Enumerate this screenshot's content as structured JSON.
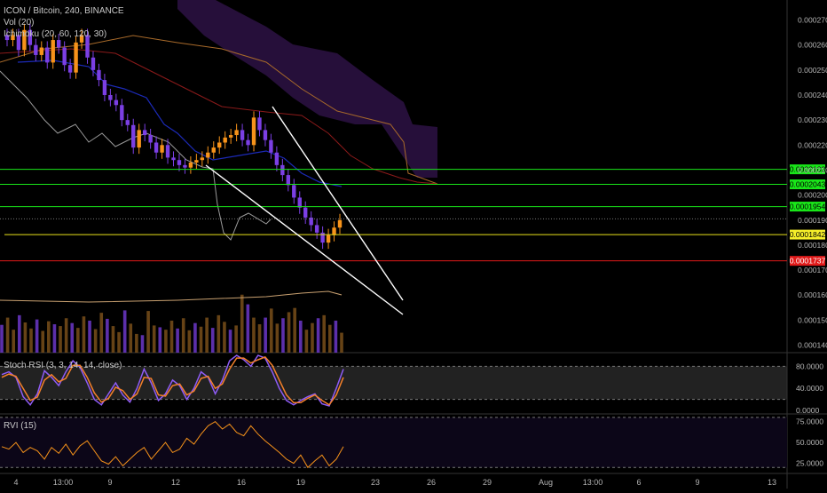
{
  "header": {
    "symbol_line": "ICON / Bitcoin, 240, BINANCE",
    "vol_label": "Vol (20)",
    "ichimoku_label": "Ichimoku (20, 60, 120, 30)",
    "stoch_label": "Stoch RSI (3, 3, 14, 14, close)",
    "rvi_label": "RVI (15)"
  },
  "colors": {
    "background": "#000000",
    "candle_up": "#f7931a",
    "candle_down": "#7b3fe4",
    "stoch_k": "#8f5cf6",
    "stoch_d": "#f4802a",
    "rvi": "#f7931a",
    "cloud": "#2d1244",
    "level_green": "#19e619",
    "level_yellow": "#e8e21a",
    "level_red": "#e21a1a",
    "wedge": "#ffffff"
  },
  "price_axis": {
    "ticks": [
      "0.0002700",
      "0.0002600",
      "0.0002500",
      "0.0002400",
      "0.0002300",
      "0.0002200",
      "0.0002100",
      "0.0002000",
      "0.0001900",
      "0.0001800",
      "0.0001700",
      "0.0001600",
      "0.0001500",
      "0.0001400"
    ]
  },
  "time_axis": {
    "ticks": [
      "4",
      "13:00",
      "9",
      "12",
      "16",
      "19",
      "23",
      "26",
      "29",
      "Aug",
      "13:00",
      "6",
      "9",
      "13"
    ]
  },
  "levels": [
    {
      "label": "0.0002103",
      "value": 0.0002103,
      "color": "#19e619",
      "label_bg": "#19e619",
      "label_fg": "#000000"
    },
    {
      "label": "0.0002043",
      "value": 0.0002043,
      "color": "#19e619",
      "label_bg": "#19e619",
      "label_fg": "#000000"
    },
    {
      "label": "0.0001954",
      "value": 0.0001954,
      "color": "#19e619",
      "label_bg": "#19e619",
      "label_fg": "#000000"
    },
    {
      "label": "0.0001842",
      "value": 0.0001842,
      "color": "#e8e21a",
      "label_bg": "#f5ee2a",
      "label_fg": "#000000"
    },
    {
      "label": "0.0001737",
      "value": 0.0001737,
      "color": "#e21a1a",
      "label_bg": "#e21a1a",
      "label_fg": "#ffffff"
    }
  ],
  "stoch_axis": {
    "ticks": [
      "80.0000",
      "40.0000",
      "0.0000"
    ]
  },
  "rvi_axis": {
    "ticks": [
      "75.0000",
      "50.0000",
      "25.0000"
    ]
  },
  "chart_data": [
    {
      "type": "candlestick",
      "title": "ICON / Bitcoin, 240, BINANCE",
      "ylim": [
        0.000137,
        0.000278
      ],
      "close": [
        0.000262,
        0.000264,
        0.000258,
        0.000266,
        0.00026,
        0.000256,
        0.000259,
        0.000253,
        0.000262,
        0.000259,
        0.000252,
        0.000249,
        0.000261,
        0.000264,
        0.000255,
        0.00025,
        0.000246,
        0.00024,
        0.000238,
        0.000236,
        0.00023,
        0.000228,
        0.000219,
        0.000226,
        0.000224,
        0.000221,
        0.000217,
        0.00022,
        0.000215,
        0.000214,
        0.000212,
        0.000211,
        0.000213,
        0.000214,
        0.000215,
        0.000217,
        0.000219,
        0.000221,
        0.000223,
        0.000224,
        0.000226,
        0.000222,
        0.00022,
        0.000231,
        0.000226,
        0.000222,
        0.000217,
        0.000212,
        0.000208,
        0.000204,
        0.000199,
        0.000195,
        0.000191,
        0.000188,
        0.000185,
        0.000181,
        0.000184,
        0.000187,
        0.00019
      ]
    },
    {
      "type": "line",
      "title": "Stoch RSI (3, 3, 14, 14, close)",
      "ylim": [
        0,
        100
      ],
      "series": [
        {
          "name": "K",
          "values": [
            65,
            70,
            60,
            25,
            10,
            30,
            72,
            60,
            45,
            70,
            90,
            78,
            50,
            20,
            10,
            30,
            50,
            28,
            15,
            40,
            75,
            50,
            18,
            30,
            55,
            45,
            20,
            40,
            70,
            60,
            30,
            55,
            90,
            100,
            92,
            80,
            100,
            95,
            70,
            40,
            18,
            10,
            18,
            25,
            30,
            12,
            8,
            40,
            75
          ]
        },
        {
          "name": "D",
          "values": [
            60,
            66,
            62,
            40,
            18,
            24,
            55,
            65,
            52,
            58,
            82,
            82,
            60,
            32,
            15,
            22,
            42,
            36,
            20,
            30,
            60,
            58,
            28,
            26,
            45,
            48,
            28,
            35,
            58,
            62,
            40,
            48,
            75,
            95,
            95,
            86,
            92,
            97,
            82,
            55,
            28,
            14,
            14,
            22,
            28,
            18,
            10,
            28,
            60
          ]
        }
      ]
    },
    {
      "type": "line",
      "title": "RVI (15)",
      "ylim": [
        15,
        82
      ],
      "series": [
        {
          "name": "RVI",
          "values": [
            45,
            42,
            50,
            38,
            44,
            40,
            30,
            44,
            37,
            48,
            35,
            46,
            52,
            40,
            28,
            24,
            33,
            22,
            30,
            38,
            44,
            30,
            40,
            50,
            38,
            42,
            55,
            48,
            60,
            70,
            75,
            66,
            72,
            62,
            58,
            70,
            60,
            52,
            45,
            38,
            30,
            25,
            35,
            20,
            28,
            35,
            22,
            30,
            45
          ]
        }
      ]
    },
    {
      "type": "bar",
      "title": "Vol (20)",
      "values": [
        46,
        58,
        38,
        62,
        50,
        40,
        55,
        36,
        52,
        47,
        44,
        57,
        49,
        41,
        60,
        53,
        39,
        66,
        56,
        44,
        34,
        70,
        48,
        31,
        29,
        69,
        45,
        42,
        38,
        53,
        40,
        57,
        37,
        49,
        43,
        58,
        41,
        62,
        51,
        38,
        45,
        96,
        80,
        58,
        47,
        58,
        73,
        48,
        57,
        67,
        74,
        53,
        38,
        49,
        57,
        62,
        46,
        53,
        33
      ]
    }
  ]
}
